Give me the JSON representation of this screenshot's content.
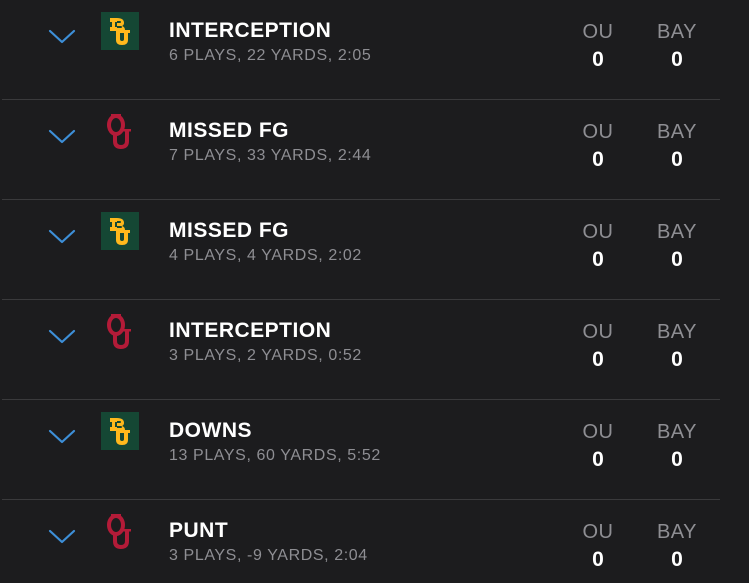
{
  "colors": {
    "background": "#1c1c1e",
    "chevron": "#3d8fd8",
    "ou_crimson": "#b31b38",
    "baylor_green": "#154734",
    "baylor_gold": "#ffb81c"
  },
  "drives": [
    {
      "team": "BAY",
      "logo": "baylor-logo",
      "result": "INTERCEPTION",
      "summary": "6 PLAYS, 22 YARDS, 2:05",
      "ou_label": "OU",
      "ou_score": "0",
      "bay_label": "BAY",
      "bay_score": "0"
    },
    {
      "team": "OU",
      "logo": "oklahoma-logo",
      "result": "MISSED FG",
      "summary": "7 PLAYS, 33 YARDS, 2:44",
      "ou_label": "OU",
      "ou_score": "0",
      "bay_label": "BAY",
      "bay_score": "0"
    },
    {
      "team": "BAY",
      "logo": "baylor-logo",
      "result": "MISSED FG",
      "summary": "4 PLAYS, 4 YARDS, 2:02",
      "ou_label": "OU",
      "ou_score": "0",
      "bay_label": "BAY",
      "bay_score": "0"
    },
    {
      "team": "OU",
      "logo": "oklahoma-logo",
      "result": "INTERCEPTION",
      "summary": "3 PLAYS, 2 YARDS, 0:52",
      "ou_label": "OU",
      "ou_score": "0",
      "bay_label": "BAY",
      "bay_score": "0"
    },
    {
      "team": "BAY",
      "logo": "baylor-logo",
      "result": "DOWNS",
      "summary": "13 PLAYS, 60 YARDS, 5:52",
      "ou_label": "OU",
      "ou_score": "0",
      "bay_label": "BAY",
      "bay_score": "0"
    },
    {
      "team": "OU",
      "logo": "oklahoma-logo",
      "result": "PUNT",
      "summary": "3 PLAYS, -9 YARDS, 2:04",
      "ou_label": "OU",
      "ou_score": "0",
      "bay_label": "BAY",
      "bay_score": "0"
    }
  ]
}
